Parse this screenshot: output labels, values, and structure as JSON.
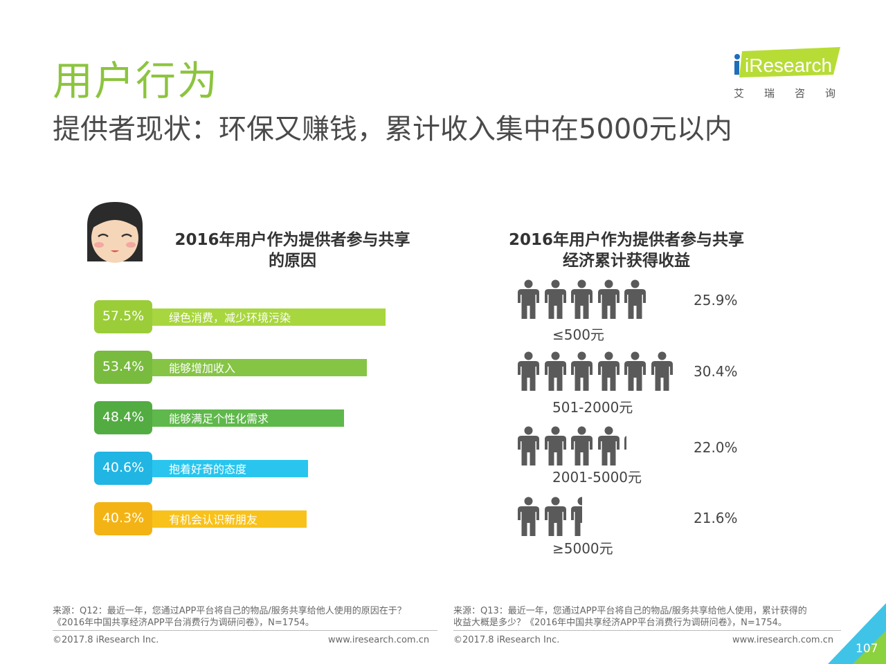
{
  "header": {
    "section_title": "用户行为",
    "subtitle": "提供者现状：环保又赚钱，累计收入集中在5000元以内",
    "logo_text": "iResearch",
    "logo_cn": "艾瑞咨询"
  },
  "avatar_icon": "girl-face-icon",
  "person_icon": "person-icon",
  "chart_data": [
    {
      "type": "bar",
      "title": "2016年用户作为提供者参与共享的原因",
      "categories": [
        "绿色消费，减少环境污染",
        "能够增加收入",
        "能够满足个性化需求",
        "抱着好奇的态度",
        "有机会认识新朋友"
      ],
      "values": [
        57.5,
        53.4,
        48.4,
        40.6,
        40.3
      ],
      "value_labels": [
        "57.5%",
        "53.4%",
        "48.4%",
        "40.6%",
        "40.3%"
      ],
      "colors": [
        "#a8d63e",
        "#86c446",
        "#5fb84b",
        "#29c5ee",
        "#f8c21b"
      ],
      "badge_colors": [
        "#9bcd39",
        "#79bb3e",
        "#53ac42",
        "#21b5e3",
        "#f4b314"
      ],
      "xlim": [
        0,
        60
      ]
    },
    {
      "type": "pictogram",
      "title": "2016年用户作为提供者参与共享经济累计获得收益",
      "categories": [
        "≤500元",
        "501-2000元",
        "2001-5000元",
        "≥5000元"
      ],
      "values": [
        25.9,
        30.4,
        22.0,
        21.6
      ],
      "value_labels": [
        "25.9%",
        "30.4%",
        "22.0%",
        "21.6%"
      ],
      "person_counts": [
        5,
        6,
        4.1,
        2.5
      ],
      "color": "#5a5a5a"
    }
  ],
  "footer": {
    "left_note_line1": "来源：Q12：最近一年，您通过APP平台将自己的物品/服务共享给他人使用的原因在于？",
    "left_note_line2": "《2016年中国共享经济APP平台消费行为调研问卷》，N=1754。",
    "right_note_line1": "来源：Q13：最近一年，您通过APP平台将自己的物品/服务共享给他人使用，累计获得的",
    "right_note_line2": "收益大概是多少？《2016年中国共享经济APP平台消费行为调研问卷》，N=1754。",
    "left_copyright": "©2017.8 iResearch Inc.",
    "left_url": "www.iresearch.com.cn",
    "right_copyright": "©2017.8 iResearch Inc.",
    "right_url": "www.iresearch.com.cn",
    "page_number": "107"
  }
}
